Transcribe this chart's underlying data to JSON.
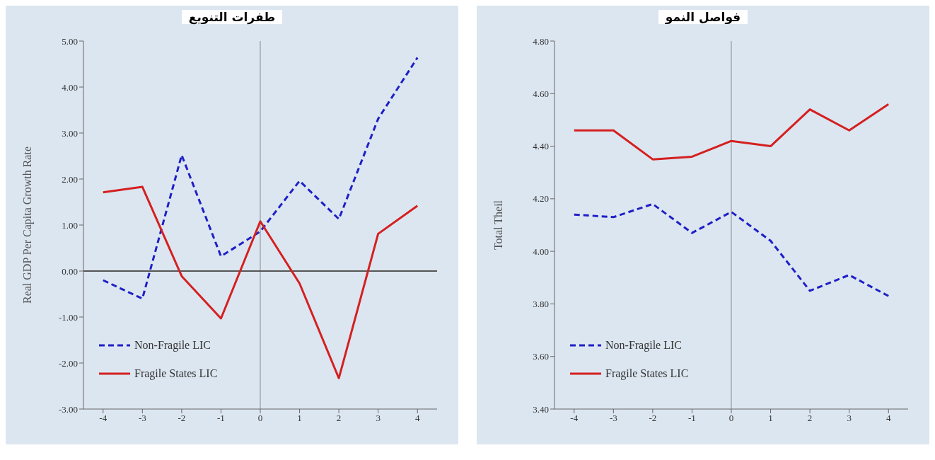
{
  "chart_data": [
    {
      "type": "line",
      "title": "طفرات التنويع",
      "ylabel": "Real GDP Per Capita Growth Rate",
      "x": [
        -4,
        -3,
        -2,
        -1,
        0,
        1,
        2,
        3,
        4
      ],
      "xlim": [
        -4.5,
        4.5
      ],
      "xticks": [
        -4,
        -3,
        -2,
        -1,
        0,
        1,
        2,
        3,
        4
      ],
      "ylim": [
        -3,
        5
      ],
      "yticks": [
        {
          "value": -3,
          "label": "-3.00"
        },
        {
          "value": -2,
          "label": "-2.00"
        },
        {
          "value": -1,
          "label": "-1.00"
        },
        {
          "value": 0,
          "label": "0.00"
        },
        {
          "value": 1,
          "label": "1.00"
        },
        {
          "value": 2,
          "label": "2.00"
        },
        {
          "value": 3,
          "label": "3.00"
        },
        {
          "value": 4,
          "label": "4.00"
        },
        {
          "value": 5,
          "label": "5.00"
        }
      ],
      "grid": false,
      "legend": "bottom left",
      "marker": "none",
      "ref_lines": [
        {
          "axis": "x",
          "value": 0,
          "color": "#888888"
        },
        {
          "axis": "y",
          "value": 0,
          "color": "#555555"
        }
      ],
      "series": [
        {
          "name": "Non-Fragile LIC",
          "color": "#1f1fc8",
          "line_style": "dashed",
          "values": [
            -0.2,
            -0.6,
            2.52,
            0.32,
            0.86,
            1.96,
            1.13,
            3.31,
            4.64
          ]
        },
        {
          "name": "Fragile States LIC",
          "color": "#d42020",
          "line_style": "solid",
          "values": [
            1.71,
            1.83,
            -0.11,
            -1.03,
            1.08,
            -0.27,
            -2.33,
            0.81,
            1.42
          ]
        }
      ]
    },
    {
      "type": "line",
      "title": "فواصل النمو",
      "ylabel": "Total Theil",
      "x": [
        -4,
        -3,
        -2,
        -1,
        0,
        1,
        2,
        3,
        4
      ],
      "xlim": [
        -4.5,
        4.5
      ],
      "xticks": [
        -4,
        -3,
        -2,
        -1,
        0,
        1,
        2,
        3,
        4
      ],
      "ylim": [
        3.4,
        4.8
      ],
      "yticks": [
        {
          "value": 3.4,
          "label": "3.40"
        },
        {
          "value": 3.6,
          "label": "3.60"
        },
        {
          "value": 3.8,
          "label": "3.80"
        },
        {
          "value": 4,
          "label": "4.00"
        },
        {
          "value": 4.2,
          "label": "4.20"
        },
        {
          "value": 4.4,
          "label": "4.40"
        },
        {
          "value": 4.6,
          "label": "4.60"
        },
        {
          "value": 4.8,
          "label": "4.80"
        }
      ],
      "grid": false,
      "legend": "bottom left",
      "marker": "none",
      "ref_lines": [
        {
          "axis": "x",
          "value": 0,
          "color": "#888888"
        }
      ],
      "series": [
        {
          "name": "Non-Fragile LIC",
          "color": "#1f1fc8",
          "line_style": "dashed",
          "values": [
            4.14,
            4.13,
            4.18,
            4.07,
            4.15,
            4.04,
            3.85,
            3.91,
            3.83
          ]
        },
        {
          "name": "Fragile States LIC",
          "color": "#d42020",
          "line_style": "solid",
          "values": [
            4.46,
            4.46,
            4.35,
            4.36,
            4.42,
            4.4,
            4.54,
            4.46,
            4.56
          ]
        }
      ]
    }
  ]
}
